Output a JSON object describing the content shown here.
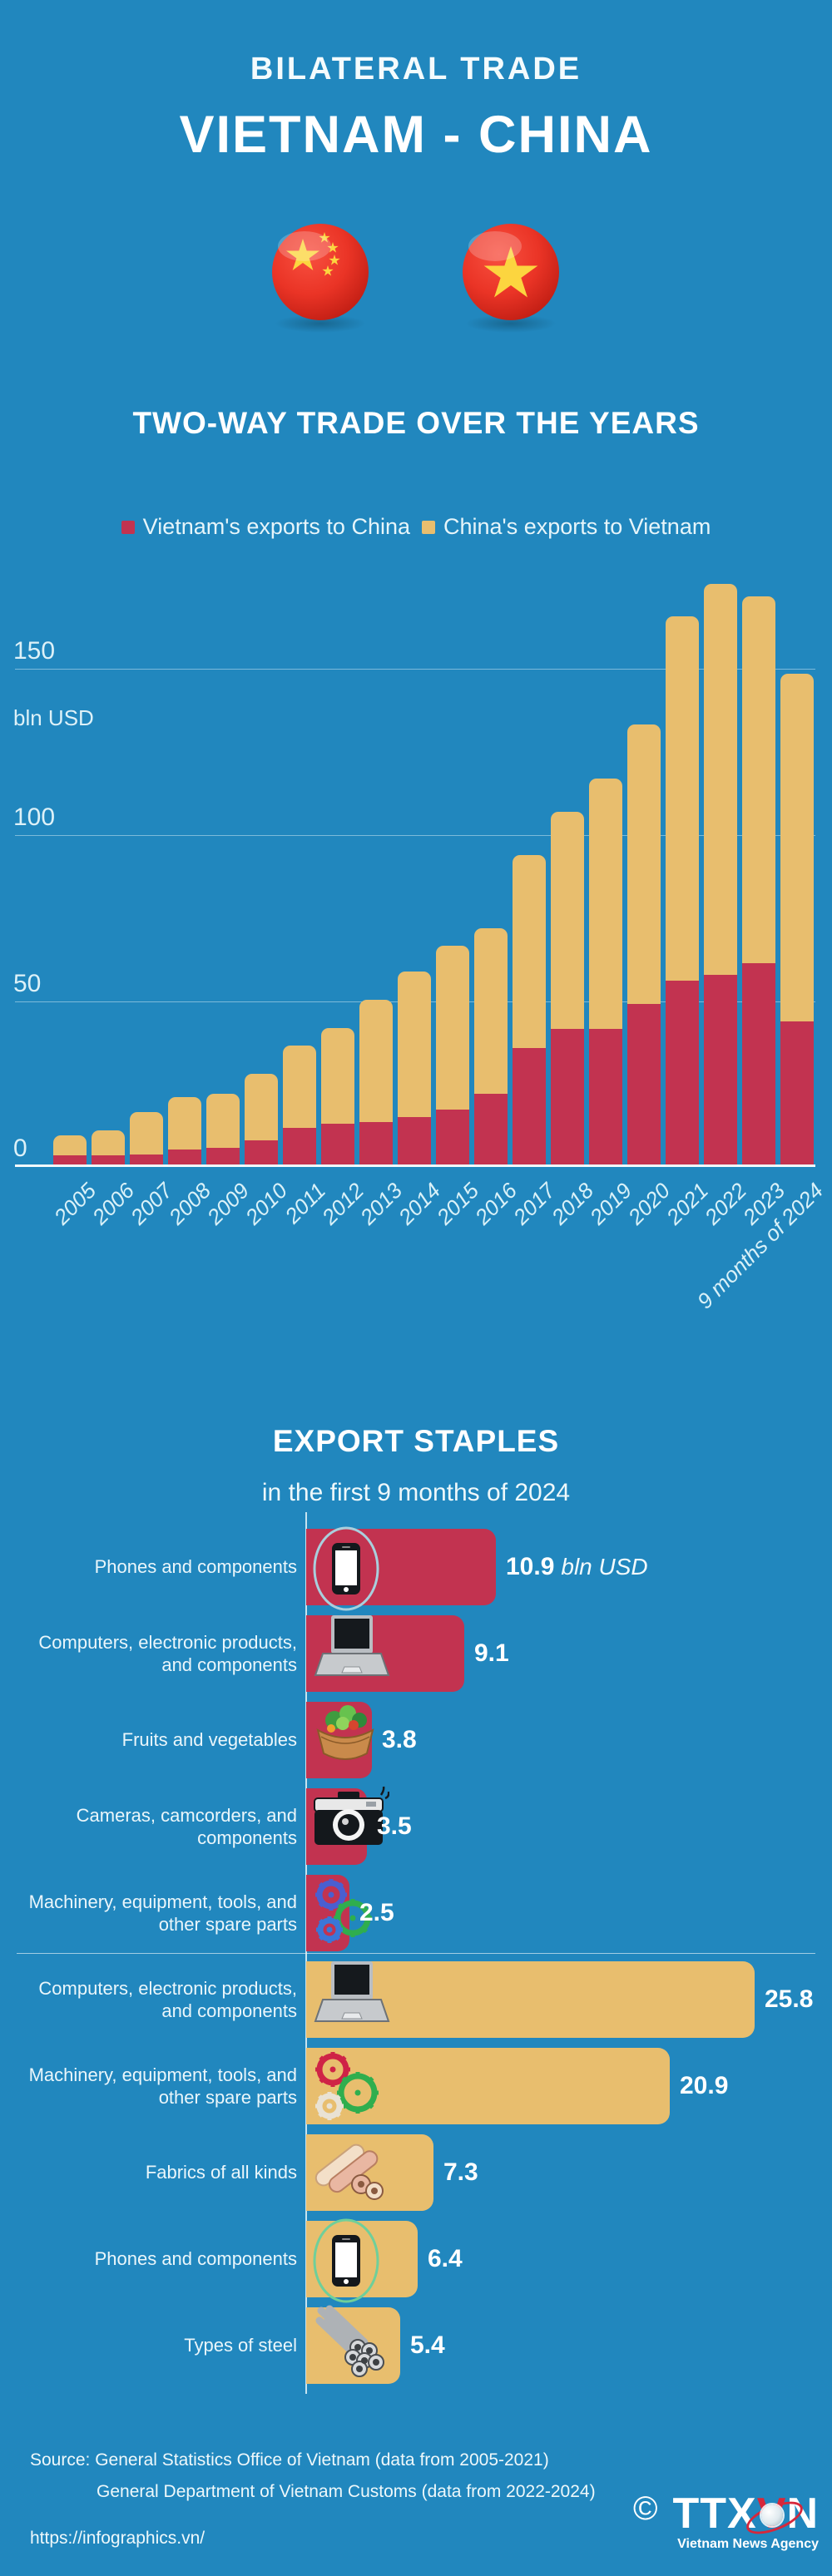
{
  "header": {
    "kicker": "BILATERAL TRADE",
    "title": "VIETNAM - CHINA",
    "flags": [
      "china-flag",
      "vietnam-flag"
    ]
  },
  "footer": {
    "source_line1": "Source: General Statistics Office of Vietnam (data from 2005-2021)",
    "source_line2": "General Department of Vietnam Customs (data from 2022-2024)",
    "url": "https://infographics.vn/",
    "copyright": "©",
    "logo_ttx": "TTX",
    "logo_v": "V",
    "logo_n": "N",
    "logo_agency": "Vietnam News Agency"
  },
  "colors": {
    "background": "#2187be",
    "vietnam_exports": "#c23350",
    "china_exports": "#e8be6e",
    "text_light": "#e6f5fa"
  },
  "chart_data": [
    {
      "type": "bar",
      "stacked": true,
      "title": "TWO-WAY TRADE OVER THE YEARS",
      "ylabel": "bln USD",
      "yticks": [
        0,
        50,
        100,
        150
      ],
      "ylim": [
        0,
        180
      ],
      "grid": true,
      "legend_position": "top",
      "categories": [
        "2005",
        "2006",
        "2007",
        "2008",
        "2009",
        "2010",
        "2011",
        "2012",
        "2013",
        "2014",
        "2015",
        "2016",
        "2017",
        "2018",
        "2019",
        "2020",
        "2021",
        "2022",
        "2023",
        "9 months of 2024"
      ],
      "series": [
        {
          "name": "Vietnam's exports to China",
          "color": "#c23350",
          "values": [
            3.2,
            3.2,
            3.6,
            4.9,
            5.4,
            7.7,
            11.6,
            12.8,
            13.3,
            14.9,
            17.1,
            21.9,
            35.5,
            41.3,
            41.4,
            48.9,
            56.0,
            57.7,
            61.2,
            43.6
          ]
        },
        {
          "name": "China's exports to Vietnam",
          "color": "#e8be6e",
          "values": [
            5.9,
            7.4,
            12.7,
            15.7,
            16.4,
            20.0,
            24.9,
            28.8,
            36.9,
            43.9,
            49.5,
            49.9,
            58.2,
            65.4,
            75.5,
            84.2,
            109.9,
            117.9,
            110.6,
            104.8
          ]
        }
      ]
    },
    {
      "type": "bar",
      "orientation": "horizontal",
      "title": "EXPORT STAPLES",
      "subtitle": "in the first 9 months of 2024",
      "unit": "bln USD",
      "groups": [
        {
          "name": "Vietnam's exports to China",
          "color": "#c23350",
          "items": [
            {
              "label": "Phones and components",
              "value": 10.9,
              "unit": "bln USD",
              "icon": "phone",
              "icon_ring": "#a9cfdd"
            },
            {
              "label": "Computers, electronic products, and components",
              "value": 9.1,
              "icon": "laptop"
            },
            {
              "label": "Fruits and vegetables",
              "value": 3.8,
              "icon": "salad"
            },
            {
              "label": "Cameras, camcorders, and components",
              "value": 3.5,
              "icon": "camera"
            },
            {
              "label": "Machinery, equipment, tools, and other spare parts",
              "value": 2.5,
              "icon": "gears-blue"
            }
          ]
        },
        {
          "name": "China's exports to Vietnam",
          "color": "#e8be6e",
          "items": [
            {
              "label": "Computers, electronic products, and components",
              "value": 25.8,
              "icon": "laptop"
            },
            {
              "label": "Machinery, equipment, tools, and other spare parts",
              "value": 20.9,
              "icon": "gears-red"
            },
            {
              "label": "Fabrics of all kinds",
              "value": 7.3,
              "icon": "fabric"
            },
            {
              "label": "Phones and components",
              "value": 6.4,
              "icon": "phone",
              "icon_ring": "#6fcf9a"
            },
            {
              "label": "Types of steel",
              "value": 5.4,
              "icon": "steel"
            }
          ]
        }
      ]
    }
  ]
}
